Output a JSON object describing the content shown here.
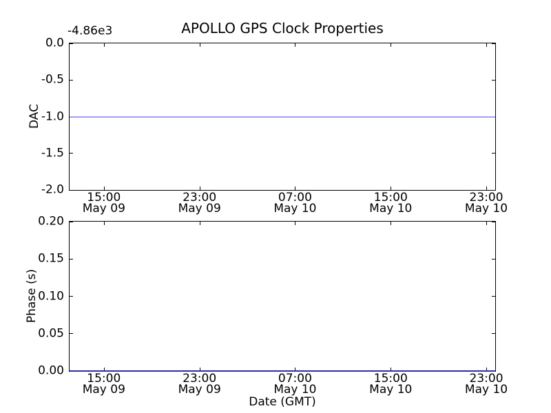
{
  "figure": {
    "background": "#ffffff",
    "text_color": "#000000",
    "spine_color": "#000000"
  },
  "chart_data": [
    {
      "type": "line",
      "title": "APOLLO GPS Clock Properties",
      "ylabel": "DAC",
      "y_offset_text": "-4.86e3",
      "ylim": [
        -2.0,
        0.0
      ],
      "grid": false,
      "legend": null,
      "y_ticks": [
        {
          "value": 0.0,
          "label": "0.0"
        },
        {
          "value": -0.5,
          "label": "-0.5"
        },
        {
          "value": -1.0,
          "label": "-1.0"
        },
        {
          "value": -1.5,
          "label": "-1.5"
        },
        {
          "value": -2.0,
          "label": "-2.0"
        }
      ],
      "x_ticks": [
        {
          "pos": 0.0806,
          "time": "15:00",
          "date": "May 09"
        },
        {
          "pos": 0.3053,
          "time": "23:00",
          "date": "May 09"
        },
        {
          "pos": 0.5298,
          "time": "07:00",
          "date": "May 10"
        },
        {
          "pos": 0.7545,
          "time": "15:00",
          "date": "May 10"
        },
        {
          "pos": 0.979,
          "time": "23:00",
          "date": "May 10"
        }
      ],
      "series": [
        {
          "name": "DAC",
          "shape": "constant-hline",
          "value": -1.0,
          "color": "#0000ff",
          "display_color": "#9f9ff2"
        }
      ]
    },
    {
      "type": "line",
      "title": "",
      "ylabel": "Phase (s)",
      "xlabel": "Date (GMT)",
      "ylim": [
        0.0,
        0.2
      ],
      "grid": false,
      "legend": null,
      "y_ticks": [
        {
          "value": 0.2,
          "label": "0.20"
        },
        {
          "value": 0.15,
          "label": "0.15"
        },
        {
          "value": 0.1,
          "label": "0.10"
        },
        {
          "value": 0.05,
          "label": "0.05"
        },
        {
          "value": 0.0,
          "label": "0.00"
        }
      ],
      "x_ticks": [
        {
          "pos": 0.0806,
          "time": "15:00",
          "date": "May 09"
        },
        {
          "pos": 0.3053,
          "time": "23:00",
          "date": "May 09"
        },
        {
          "pos": 0.5298,
          "time": "07:00",
          "date": "May 10"
        },
        {
          "pos": 0.7545,
          "time": "15:00",
          "date": "May 10"
        },
        {
          "pos": 0.979,
          "time": "23:00",
          "date": "May 10"
        }
      ],
      "series": [
        {
          "name": "Phase",
          "shape": "constant-hline",
          "value": 0.0,
          "color": "#0000ff",
          "display_color": "#2d2da4"
        }
      ]
    }
  ]
}
